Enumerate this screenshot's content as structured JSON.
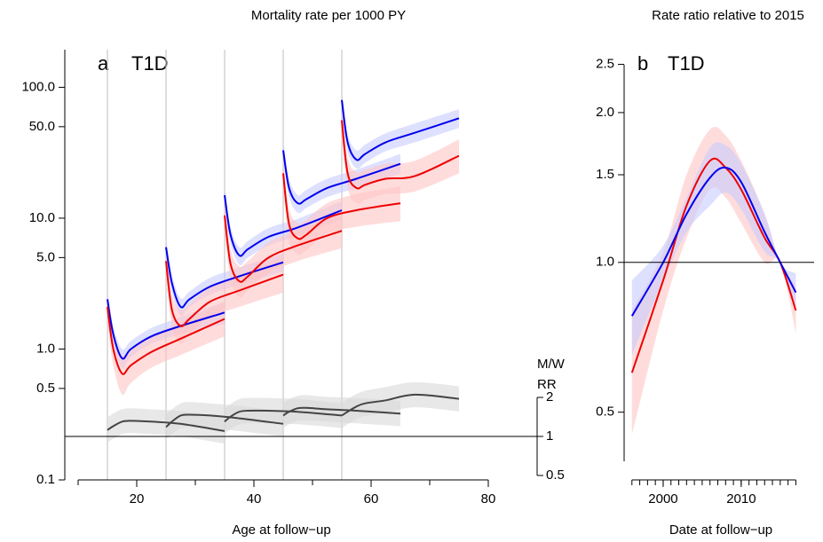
{
  "chart_data": [
    {
      "type": "line",
      "title": "Mortality rate per 1000 PY",
      "panel_label": "a",
      "panel_title": "T1D",
      "xlabel": "Age at follow−up",
      "xlim": [
        10,
        85
      ],
      "xticks": [
        20,
        40,
        60,
        80
      ],
      "minor_xticks": [
        10,
        30,
        50,
        70
      ],
      "ylim": [
        0.1,
        200
      ],
      "log_y": true,
      "yticks": [
        0.1,
        0.5,
        {
          "value": 1,
          "label": "1.0"
        },
        {
          "value": 5,
          "label": "5.0"
        },
        {
          "value": 10,
          "label": "10.0"
        },
        {
          "value": 50,
          "label": "50.0"
        },
        {
          "value": 100,
          "label": "100.0"
        }
      ],
      "y2lim": [
        0.5,
        2
      ],
      "log_y2": true,
      "y2ticks": [
        0.5,
        1,
        2
      ],
      "y2_label": [
        "M/W",
        "RR"
      ],
      "hline_y2": 1,
      "vlines": [
        15,
        25,
        35,
        45,
        55
      ],
      "series": [
        {
          "color": "#0000ee",
          "band_color": "#c8ccff",
          "x": [
            15,
            16,
            17.5,
            19,
            22.5,
            27.5,
            35
          ],
          "values": [
            2.4,
            1.3,
            0.85,
            1.0,
            1.25,
            1.5,
            1.9
          ],
          "lower": [
            2.0,
            1.1,
            0.72,
            0.87,
            1.1,
            1.3,
            1.55
          ],
          "upper": [
            2.8,
            1.5,
            1.0,
            1.15,
            1.45,
            1.75,
            2.3
          ]
        },
        {
          "color": "#ee0000",
          "band_color": "#ffc4c4",
          "x": [
            15,
            16,
            17.5,
            19,
            22.5,
            27.5,
            35
          ],
          "values": [
            2.1,
            1.0,
            0.65,
            0.75,
            0.95,
            1.2,
            1.7
          ],
          "lower": [
            1.6,
            0.75,
            0.45,
            0.55,
            0.72,
            0.9,
            1.25
          ],
          "upper": [
            2.7,
            1.3,
            0.9,
            1.0,
            1.25,
            1.6,
            2.3
          ]
        },
        {
          "color": "#0000ee",
          "band_color": "#c8ccff",
          "x": [
            25,
            26,
            27.5,
            29,
            32.5,
            37.5,
            45
          ],
          "values": [
            6.0,
            3.2,
            2.1,
            2.4,
            3.0,
            3.6,
            4.6
          ],
          "lower": [
            5.0,
            2.7,
            1.8,
            2.1,
            2.6,
            3.1,
            3.9
          ],
          "upper": [
            7.0,
            3.7,
            2.45,
            2.75,
            3.5,
            4.2,
            5.4
          ]
        },
        {
          "color": "#ee0000",
          "band_color": "#ffc4c4",
          "x": [
            25,
            26,
            27.5,
            29,
            32.5,
            37.5,
            45
          ],
          "values": [
            4.7,
            2.0,
            1.5,
            1.7,
            2.3,
            2.8,
            3.7
          ],
          "lower": [
            3.6,
            1.5,
            1.1,
            1.3,
            1.75,
            2.1,
            2.7
          ],
          "upper": [
            6.0,
            2.6,
            2.0,
            2.2,
            3.0,
            3.7,
            5.0
          ]
        },
        {
          "color": "#0000ee",
          "band_color": "#c8ccff",
          "x": [
            35,
            36,
            37.5,
            39,
            42.5,
            47.5,
            55
          ],
          "values": [
            15,
            7.5,
            5.2,
            5.8,
            7.2,
            8.5,
            11.5
          ],
          "lower": [
            12.5,
            6.4,
            4.4,
            5.0,
            6.2,
            7.3,
            9.8
          ],
          "upper": [
            17.5,
            8.7,
            6.0,
            6.7,
            8.4,
            9.9,
            13.5
          ]
        },
        {
          "color": "#ee0000",
          "band_color": "#ffc4c4",
          "x": [
            35,
            36,
            37.5,
            39,
            42.5,
            47.5,
            55
          ],
          "values": [
            10.5,
            4.5,
            3.3,
            3.6,
            5.0,
            6.2,
            8.0
          ],
          "lower": [
            8.0,
            3.4,
            2.5,
            2.8,
            3.8,
            4.7,
            5.9
          ],
          "upper": [
            13.5,
            5.9,
            4.3,
            4.7,
            6.5,
            8.1,
            10.8
          ]
        },
        {
          "color": "#0000ee",
          "band_color": "#c8ccff",
          "x": [
            45,
            46,
            47.5,
            49,
            52.5,
            57.5,
            65
          ],
          "values": [
            33,
            17,
            13,
            14,
            17,
            20,
            26
          ],
          "lower": [
            28,
            14.5,
            11,
            12,
            14.5,
            17,
            22
          ],
          "upper": [
            39,
            20,
            15,
            16.5,
            20,
            23.5,
            31
          ]
        },
        {
          "color": "#ee0000",
          "band_color": "#ffc4c4",
          "x": [
            45,
            46,
            47.5,
            49,
            52.5,
            57.5,
            65
          ],
          "values": [
            22,
            9,
            7,
            7.5,
            10,
            11.5,
            13
          ],
          "lower": [
            17,
            6.8,
            5.3,
            5.7,
            7.6,
            8.6,
            9.5
          ],
          "upper": [
            28,
            11.8,
            9.2,
            9.8,
            13,
            15.3,
            17.5
          ]
        },
        {
          "color": "#0000ee",
          "band_color": "#c8ccff",
          "x": [
            55,
            56,
            57.5,
            59,
            62.5,
            67.5,
            75
          ],
          "values": [
            80,
            38,
            28,
            31,
            38,
            45,
            58
          ],
          "lower": [
            68,
            32,
            24,
            26.5,
            32.5,
            38,
            49
          ],
          "upper": [
            94,
            44,
            33,
            36.5,
            44.5,
            53,
            68
          ]
        },
        {
          "color": "#ee0000",
          "band_color": "#ffc4c4",
          "x": [
            55,
            56,
            57.5,
            59,
            62.5,
            67.5,
            75
          ],
          "values": [
            56,
            22,
            17,
            18,
            20,
            21,
            30
          ],
          "lower": [
            43,
            17,
            13,
            13.8,
            15.3,
            16,
            22
          ],
          "upper": [
            72,
            29,
            22.5,
            23.5,
            26,
            27.5,
            40
          ]
        },
        {
          "axis": "y2",
          "color": "#444444",
          "band_color": "#d9d9d9",
          "x": [
            15,
            16,
            17.5,
            19,
            22.5,
            27.5,
            35
          ],
          "values": [
            1.12,
            1.2,
            1.3,
            1.32,
            1.3,
            1.25,
            1.1
          ],
          "lower": [
            0.9,
            0.96,
            1.04,
            1.06,
            1.04,
            1.0,
            0.88
          ],
          "upper": [
            1.4,
            1.5,
            1.62,
            1.65,
            1.62,
            1.56,
            1.38
          ]
        },
        {
          "axis": "y2",
          "color": "#444444",
          "band_color": "#d9d9d9",
          "x": [
            25,
            26,
            27.5,
            29,
            32.5,
            37.5,
            45
          ],
          "values": [
            1.18,
            1.3,
            1.45,
            1.47,
            1.45,
            1.38,
            1.25
          ],
          "lower": [
            0.95,
            1.04,
            1.16,
            1.18,
            1.16,
            1.1,
            1.0
          ],
          "upper": [
            1.48,
            1.62,
            1.8,
            1.84,
            1.8,
            1.72,
            1.56
          ]
        },
        {
          "axis": "y2",
          "color": "#444444",
          "band_color": "#d9d9d9",
          "x": [
            35,
            36,
            37.5,
            39,
            42.5,
            47.5,
            55
          ],
          "values": [
            1.3,
            1.42,
            1.55,
            1.58,
            1.58,
            1.55,
            1.45
          ],
          "lower": [
            1.04,
            1.14,
            1.24,
            1.26,
            1.26,
            1.24,
            1.16
          ],
          "upper": [
            1.62,
            1.78,
            1.94,
            1.98,
            1.98,
            1.94,
            1.8
          ]
        },
        {
          "axis": "y2",
          "color": "#444444",
          "band_color": "#d9d9d9",
          "x": [
            45,
            46,
            47.5,
            49,
            52.5,
            57.5,
            65
          ],
          "values": [
            1.45,
            1.55,
            1.65,
            1.66,
            1.62,
            1.58,
            1.5
          ],
          "lower": [
            1.16,
            1.24,
            1.32,
            1.33,
            1.3,
            1.26,
            1.2
          ],
          "upper": [
            1.8,
            1.94,
            2.06,
            2.08,
            2.02,
            1.98,
            1.88
          ]
        },
        {
          "axis": "y2",
          "color": "#444444",
          "band_color": "#d9d9d9",
          "x": [
            55,
            56,
            57.5,
            59,
            62.5,
            67.5,
            75
          ],
          "values": [
            1.45,
            1.55,
            1.7,
            1.8,
            1.9,
            2.1,
            1.95
          ],
          "lower": [
            1.16,
            1.24,
            1.36,
            1.44,
            1.52,
            1.68,
            1.56
          ],
          "upper": [
            1.8,
            1.94,
            2.12,
            2.25,
            2.4,
            2.62,
            2.44
          ]
        }
      ]
    },
    {
      "type": "line",
      "title": "Rate ratio relative to 2015",
      "panel_label": "b",
      "panel_title": "T1D",
      "xlabel": "Date at follow−up",
      "xlim": [
        1995,
        2019
      ],
      "xticks": [
        2000,
        2010
      ],
      "minor_xticks": [
        1996,
        1997,
        1998,
        1999,
        2000,
        2001,
        2002,
        2003,
        2004,
        2005,
        2006,
        2007,
        2008,
        2009,
        2010,
        2011,
        2012,
        2013,
        2014,
        2015,
        2016,
        2017
      ],
      "ylim": [
        0.4,
        2.6
      ],
      "log_y": true,
      "yticks": [
        0.5,
        {
          "value": 1,
          "label": "1.0"
        },
        1.5,
        {
          "value": 2,
          "label": "2.0"
        },
        2.5
      ],
      "hline": 1,
      "series": [
        {
          "color": "#ee0000",
          "band_color": "#ffc4c4",
          "x": [
            1996,
            2000,
            2003,
            2006,
            2008,
            2010,
            2013,
            2015,
            2017
          ],
          "values": [
            0.6,
            0.92,
            1.3,
            1.6,
            1.55,
            1.4,
            1.12,
            1.0,
            0.8
          ],
          "lower": [
            0.45,
            0.8,
            1.12,
            1.4,
            1.35,
            1.2,
            1.0,
            1.0,
            0.72
          ],
          "upper": [
            0.8,
            1.05,
            1.5,
            1.85,
            1.8,
            1.6,
            1.25,
            1.0,
            0.9
          ]
        },
        {
          "color": "#0000ee",
          "band_color": "#c8ccff",
          "x": [
            1996,
            2000,
            2003,
            2006,
            2008,
            2010,
            2013,
            2015,
            2017
          ],
          "values": [
            0.78,
            1.0,
            1.25,
            1.48,
            1.55,
            1.45,
            1.15,
            1.0,
            0.87
          ],
          "lower": [
            0.65,
            0.92,
            1.15,
            1.3,
            1.38,
            1.28,
            1.05,
            1.0,
            0.8
          ],
          "upper": [
            0.92,
            1.08,
            1.35,
            1.7,
            1.72,
            1.58,
            1.25,
            1.0,
            0.95
          ]
        }
      ]
    }
  ]
}
